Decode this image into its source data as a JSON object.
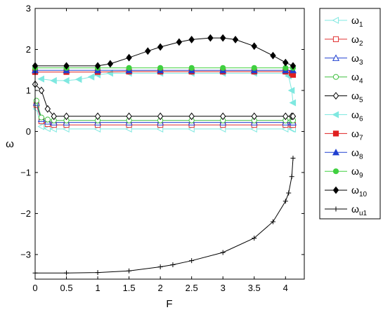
{
  "chart_data": {
    "type": "line",
    "xlabel": "F",
    "ylabel": "ω",
    "xlim": [
      0,
      4.3
    ],
    "ylim": [
      -3.6,
      3
    ],
    "xticks": [
      "0",
      "0.5",
      "1",
      "1.5",
      "2",
      "2.5",
      "3",
      "3.5",
      "4"
    ],
    "xtick_values": [
      0,
      0.5,
      1,
      1.5,
      2,
      2.5,
      3,
      3.5,
      4
    ],
    "yticks": [
      "3",
      "2",
      "1",
      "0",
      "−1",
      "−2",
      "−3"
    ],
    "ytick_values": [
      3,
      2,
      1,
      0,
      -1,
      -2,
      -3
    ],
    "grid": false,
    "legend_position": "outside-right",
    "series": [
      {
        "name": "ω1",
        "base": "ω",
        "sub": "1",
        "color": "#7fe8e0",
        "marker": "tri-left",
        "fill": false,
        "x": [
          0.02,
          0.1,
          0.2,
          0.3,
          0.5,
          1.0,
          1.5,
          2.0,
          2.5,
          3.0,
          3.5,
          4.0,
          4.1,
          4.12
        ],
        "y": [
          0.55,
          0.12,
          0.07,
          0.06,
          0.06,
          0.06,
          0.06,
          0.06,
          0.06,
          0.06,
          0.06,
          0.06,
          0.06,
          0.06
        ]
      },
      {
        "name": "ω2",
        "base": "ω",
        "sub": "2",
        "color": "#e03030",
        "marker": "square",
        "fill": false,
        "x": [
          0.02,
          0.1,
          0.2,
          0.3,
          0.5,
          1.0,
          1.5,
          2.0,
          2.5,
          3.0,
          3.5,
          4.0,
          4.1,
          4.12
        ],
        "y": [
          0.65,
          0.25,
          0.18,
          0.16,
          0.16,
          0.16,
          0.16,
          0.16,
          0.16,
          0.16,
          0.16,
          0.16,
          0.16,
          0.16
        ]
      },
      {
        "name": "ω3",
        "base": "ω",
        "sub": "3",
        "color": "#2040d0",
        "marker": "triangle-up",
        "fill": false,
        "x": [
          0.02,
          0.1,
          0.2,
          0.3,
          0.5,
          1.0,
          1.5,
          2.0,
          2.5,
          3.0,
          3.5,
          4.0,
          4.1,
          4.12
        ],
        "y": [
          0.7,
          0.3,
          0.24,
          0.22,
          0.22,
          0.22,
          0.22,
          0.22,
          0.22,
          0.22,
          0.22,
          0.22,
          0.22,
          0.22
        ]
      },
      {
        "name": "ω4",
        "base": "ω",
        "sub": "4",
        "color": "#40c040",
        "marker": "circle",
        "fill": false,
        "x": [
          0.02,
          0.1,
          0.2,
          0.3,
          0.5,
          1.0,
          1.5,
          2.0,
          2.5,
          3.0,
          3.5,
          4.0,
          4.1,
          4.12
        ],
        "y": [
          0.75,
          0.34,
          0.29,
          0.27,
          0.27,
          0.27,
          0.27,
          0.27,
          0.27,
          0.27,
          0.27,
          0.27,
          0.27,
          0.27
        ]
      },
      {
        "name": "ω5",
        "base": "ω",
        "sub": "5",
        "color": "#000000",
        "marker": "diamond",
        "fill": false,
        "x": [
          0.0,
          0.1,
          0.2,
          0.3,
          0.5,
          1.0,
          1.5,
          2.0,
          2.5,
          3.0,
          3.5,
          4.0,
          4.1,
          4.12
        ],
        "y": [
          1.15,
          1.0,
          0.55,
          0.37,
          0.37,
          0.37,
          0.37,
          0.37,
          0.37,
          0.37,
          0.37,
          0.37,
          0.37,
          0.37
        ]
      },
      {
        "name": "ω6",
        "base": "ω",
        "sub": "6",
        "color": "#7fe8e0",
        "marker": "tri-left",
        "fill": true,
        "x": [
          0.1,
          0.3,
          0.5,
          0.7,
          0.9,
          1.0,
          1.2,
          1.5,
          2.0,
          2.5,
          3.0,
          3.5,
          4.0,
          4.05,
          4.1,
          4.12
        ],
        "y": [
          1.28,
          1.24,
          1.24,
          1.27,
          1.33,
          1.38,
          1.42,
          1.42,
          1.42,
          1.42,
          1.42,
          1.42,
          1.42,
          1.35,
          1.0,
          0.7
        ]
      },
      {
        "name": "ω7",
        "base": "ω",
        "sub": "7",
        "color": "#e02020",
        "marker": "square",
        "fill": true,
        "x": [
          0.0,
          0.5,
          1.0,
          1.5,
          2.0,
          2.5,
          3.0,
          3.5,
          4.0,
          4.1,
          4.12
        ],
        "y": [
          1.45,
          1.45,
          1.45,
          1.46,
          1.46,
          1.46,
          1.46,
          1.46,
          1.46,
          1.42,
          1.38
        ]
      },
      {
        "name": "ω8",
        "base": "ω",
        "sub": "8",
        "color": "#2040d0",
        "marker": "triangle-up",
        "fill": true,
        "x": [
          0.0,
          0.5,
          1.0,
          1.5,
          2.0,
          2.5,
          3.0,
          3.5,
          4.0,
          4.12
        ],
        "y": [
          1.49,
          1.49,
          1.49,
          1.49,
          1.49,
          1.49,
          1.49,
          1.49,
          1.49,
          1.49
        ]
      },
      {
        "name": "ω9",
        "base": "ω",
        "sub": "9",
        "color": "#40d040",
        "marker": "circle",
        "fill": true,
        "x": [
          0.0,
          0.5,
          1.0,
          1.5,
          2.0,
          2.5,
          3.0,
          3.5,
          4.0,
          4.12
        ],
        "y": [
          1.55,
          1.55,
          1.55,
          1.55,
          1.55,
          1.55,
          1.55,
          1.55,
          1.55,
          1.55
        ]
      },
      {
        "name": "ω10",
        "base": "ω",
        "sub": "10",
        "color": "#000000",
        "marker": "diamond",
        "fill": true,
        "x": [
          0.0,
          0.5,
          1.0,
          1.2,
          1.5,
          1.8,
          2.0,
          2.3,
          2.5,
          2.8,
          3.0,
          3.2,
          3.5,
          3.8,
          4.0,
          4.12
        ],
        "y": [
          1.6,
          1.6,
          1.6,
          1.65,
          1.8,
          1.96,
          2.06,
          2.18,
          2.24,
          2.28,
          2.28,
          2.24,
          2.08,
          1.85,
          1.68,
          1.6
        ]
      },
      {
        "name": "ωu1",
        "base": "ω",
        "sub": "u1",
        "color": "#000000",
        "marker": "plus",
        "fill": false,
        "x": [
          0.0,
          0.5,
          1.0,
          1.5,
          2.0,
          2.2,
          2.5,
          3.0,
          3.5,
          3.8,
          4.0,
          4.05,
          4.1,
          4.12
        ],
        "y": [
          -3.45,
          -3.45,
          -3.44,
          -3.4,
          -3.3,
          -3.25,
          -3.15,
          -2.95,
          -2.6,
          -2.2,
          -1.7,
          -1.5,
          -1.1,
          -0.65
        ]
      }
    ]
  }
}
